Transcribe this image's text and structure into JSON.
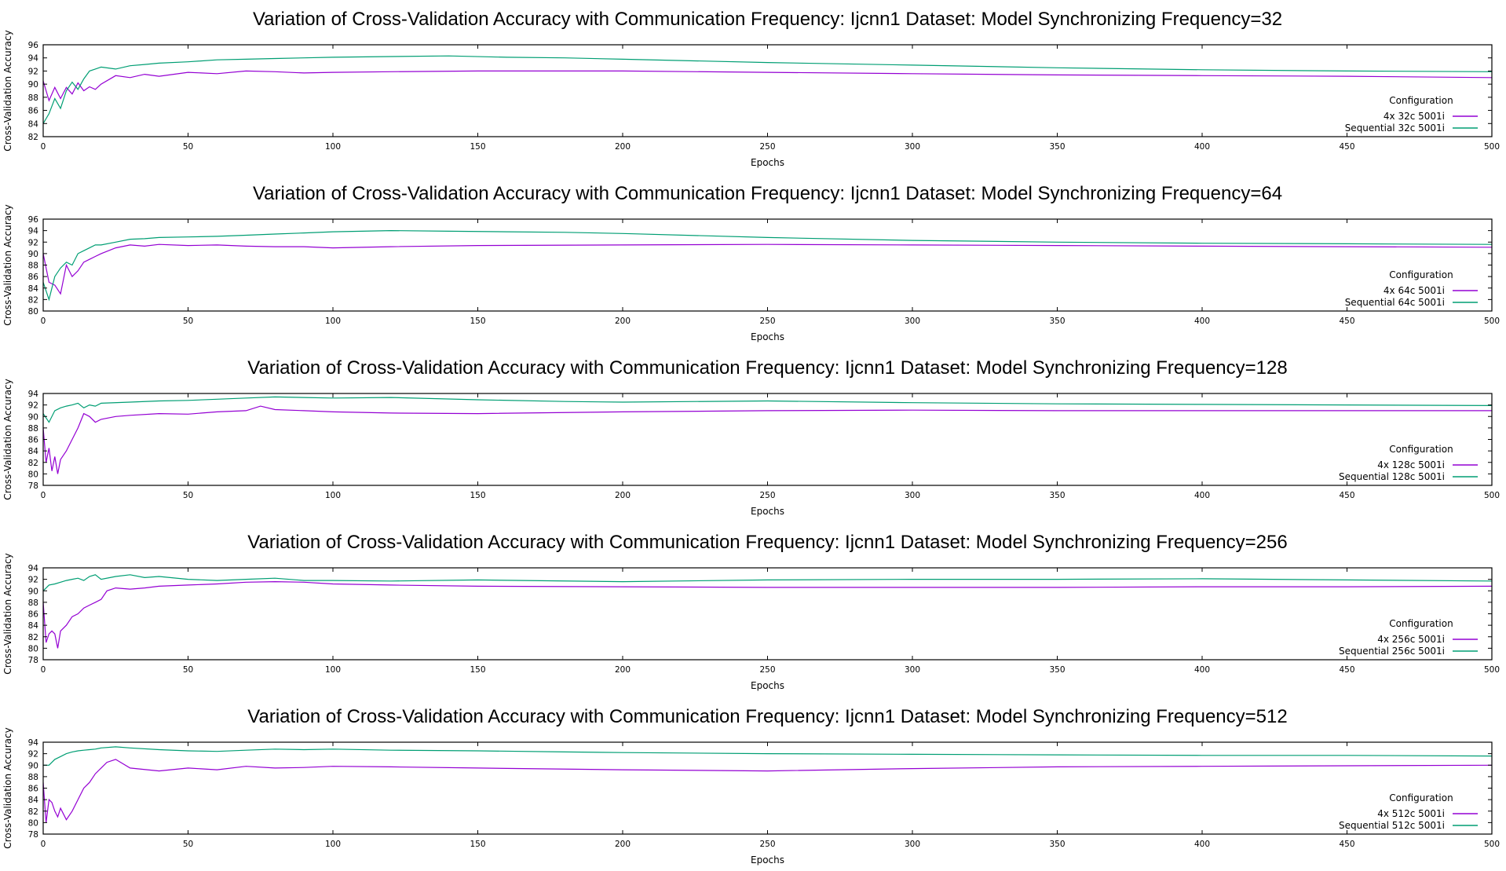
{
  "chart_data": [
    {
      "type": "line",
      "title": "Variation of Cross-Validation Accuracy with Communication Frequency: Ijcnn1 Dataset: Model Synchronizing Frequency=32",
      "xlabel": "Epochs",
      "ylabel": "Cross-Validation Accuracy",
      "xlim": [
        0,
        500
      ],
      "ylim": [
        82,
        96
      ],
      "xticks": [
        0,
        50,
        100,
        150,
        200,
        250,
        300,
        350,
        400,
        450,
        500
      ],
      "yticks": [
        82,
        84,
        86,
        88,
        90,
        92,
        94,
        96
      ],
      "grid": false,
      "legend": {
        "title": "Configuration",
        "position": "bottom-right"
      },
      "series": [
        {
          "name": "4x 32c 5001i",
          "color": "#9400d3",
          "x": [
            0,
            2,
            4,
            6,
            8,
            10,
            12,
            14,
            16,
            18,
            20,
            25,
            30,
            35,
            40,
            50,
            60,
            70,
            80,
            90,
            100,
            120,
            150,
            180,
            200,
            250,
            300,
            350,
            400,
            450,
            500
          ],
          "y": [
            90.5,
            87.5,
            89.5,
            87.8,
            89.5,
            88.5,
            90.2,
            89.0,
            89.6,
            89.2,
            90.0,
            91.3,
            91.0,
            91.5,
            91.2,
            91.8,
            91.6,
            92.0,
            91.9,
            91.7,
            91.8,
            91.9,
            92.0,
            92.0,
            92.0,
            91.8,
            91.6,
            91.4,
            91.3,
            91.2,
            91.0
          ]
        },
        {
          "name": "Sequential 32c 5001i",
          "color": "#009e73",
          "x": [
            0,
            2,
            4,
            6,
            8,
            10,
            12,
            14,
            16,
            18,
            20,
            25,
            30,
            35,
            40,
            50,
            60,
            70,
            80,
            90,
            100,
            120,
            140,
            160,
            180,
            200,
            250,
            300,
            350,
            400,
            450,
            500
          ],
          "y": [
            84.0,
            85.5,
            87.8,
            86.3,
            89.0,
            90.3,
            89.2,
            90.8,
            92.0,
            92.3,
            92.6,
            92.3,
            92.8,
            93.0,
            93.2,
            93.4,
            93.7,
            93.8,
            93.9,
            94.0,
            94.1,
            94.2,
            94.3,
            94.1,
            94.0,
            93.8,
            93.3,
            92.9,
            92.5,
            92.2,
            92.0,
            91.9
          ]
        }
      ]
    },
    {
      "type": "line",
      "title": "Variation of Cross-Validation Accuracy with Communication Frequency: Ijcnn1 Dataset: Model Synchronizing Frequency=64",
      "xlabel": "Epochs",
      "ylabel": "Cross-Validation Accuracy",
      "xlim": [
        0,
        500
      ],
      "ylim": [
        80,
        96
      ],
      "xticks": [
        0,
        50,
        100,
        150,
        200,
        250,
        300,
        350,
        400,
        450,
        500
      ],
      "yticks": [
        80,
        82,
        84,
        86,
        88,
        90,
        92,
        94,
        96
      ],
      "grid": false,
      "legend": {
        "title": "Configuration",
        "position": "bottom-right"
      },
      "series": [
        {
          "name": "4x 64c 5001i",
          "color": "#9400d3",
          "x": [
            0,
            2,
            4,
            6,
            8,
            10,
            12,
            14,
            16,
            18,
            20,
            25,
            30,
            35,
            40,
            50,
            60,
            70,
            80,
            90,
            100,
            120,
            150,
            200,
            250,
            300,
            350,
            400,
            450,
            500
          ],
          "y": [
            90.0,
            85.0,
            84.5,
            83.0,
            88.0,
            86.0,
            87.0,
            88.5,
            89.0,
            89.5,
            90.0,
            91.0,
            91.5,
            91.3,
            91.6,
            91.4,
            91.5,
            91.3,
            91.2,
            91.2,
            91.0,
            91.2,
            91.4,
            91.5,
            91.6,
            91.5,
            91.4,
            91.3,
            91.2,
            91.1
          ]
        },
        {
          "name": "Sequential 64c 5001i",
          "color": "#009e73",
          "x": [
            0,
            2,
            4,
            6,
            8,
            10,
            12,
            14,
            16,
            18,
            20,
            25,
            30,
            35,
            40,
            50,
            60,
            70,
            80,
            90,
            100,
            120,
            140,
            160,
            180,
            200,
            250,
            300,
            350,
            400,
            450,
            500
          ],
          "y": [
            85.0,
            82.0,
            86.0,
            87.5,
            88.5,
            88.0,
            90.0,
            90.5,
            91.0,
            91.5,
            91.5,
            92.0,
            92.5,
            92.6,
            92.8,
            92.9,
            93.0,
            93.2,
            93.4,
            93.6,
            93.8,
            94.0,
            93.9,
            93.8,
            93.7,
            93.5,
            92.8,
            92.3,
            92.0,
            91.8,
            91.7,
            91.6
          ]
        }
      ]
    },
    {
      "type": "line",
      "title": "Variation of Cross-Validation Accuracy with Communication Frequency: Ijcnn1 Dataset: Model Synchronizing Frequency=128",
      "xlabel": "Epochs",
      "ylabel": "Cross-Validation Accuracy",
      "xlim": [
        0,
        500
      ],
      "ylim": [
        78,
        94
      ],
      "xticks": [
        0,
        50,
        100,
        150,
        200,
        250,
        300,
        350,
        400,
        450,
        500
      ],
      "yticks": [
        78,
        80,
        82,
        84,
        86,
        88,
        90,
        92,
        94
      ],
      "grid": false,
      "legend": {
        "title": "Configuration",
        "position": "bottom-right"
      },
      "series": [
        {
          "name": "4x 128c 5001i",
          "color": "#9400d3",
          "x": [
            0,
            1,
            2,
            3,
            4,
            5,
            6,
            8,
            10,
            12,
            14,
            16,
            18,
            20,
            25,
            30,
            40,
            50,
            60,
            70,
            75,
            80,
            90,
            100,
            120,
            150,
            200,
            250,
            300,
            350,
            400,
            450,
            500
          ],
          "y": [
            88.0,
            82.0,
            84.5,
            80.5,
            83.0,
            80.0,
            82.5,
            84.0,
            86.0,
            88.0,
            90.5,
            90.0,
            89.0,
            89.5,
            90.0,
            90.2,
            90.5,
            90.4,
            90.8,
            91.0,
            91.8,
            91.2,
            91.0,
            90.8,
            90.6,
            90.5,
            90.8,
            91.0,
            91.1,
            91.0,
            91.0,
            91.0,
            91.0
          ]
        },
        {
          "name": "Sequential 128c 5001i",
          "color": "#009e73",
          "x": [
            0,
            2,
            4,
            6,
            8,
            10,
            12,
            14,
            16,
            18,
            20,
            30,
            40,
            50,
            60,
            70,
            80,
            90,
            100,
            120,
            150,
            180,
            200,
            250,
            300,
            350,
            400,
            450,
            500
          ],
          "y": [
            90.5,
            89.0,
            91.0,
            91.5,
            91.8,
            92.0,
            92.3,
            91.5,
            92.0,
            91.8,
            92.3,
            92.5,
            92.7,
            92.8,
            93.0,
            93.2,
            93.4,
            93.3,
            93.2,
            93.3,
            92.9,
            92.6,
            92.5,
            92.7,
            92.4,
            92.2,
            92.1,
            92.0,
            91.9
          ]
        }
      ]
    },
    {
      "type": "line",
      "title": "Variation of Cross-Validation Accuracy with Communication Frequency: Ijcnn1 Dataset: Model Synchronizing Frequency=256",
      "xlabel": "Epochs",
      "ylabel": "Cross-Validation Accuracy",
      "xlim": [
        0,
        500
      ],
      "ylim": [
        78,
        94
      ],
      "xticks": [
        0,
        50,
        100,
        150,
        200,
        250,
        300,
        350,
        400,
        450,
        500
      ],
      "yticks": [
        78,
        80,
        82,
        84,
        86,
        88,
        90,
        92,
        94
      ],
      "grid": false,
      "legend": {
        "title": "Configuration",
        "position": "bottom-right"
      },
      "series": [
        {
          "name": "4x 256c 5001i",
          "color": "#9400d3",
          "x": [
            0,
            1,
            2,
            3,
            4,
            5,
            6,
            8,
            10,
            12,
            14,
            16,
            18,
            20,
            22,
            25,
            30,
            35,
            40,
            50,
            60,
            70,
            80,
            90,
            100,
            120,
            150,
            200,
            250,
            300,
            350,
            400,
            450,
            500
          ],
          "y": [
            88.0,
            81.0,
            82.5,
            83.0,
            82.5,
            80.0,
            83.0,
            84.0,
            85.5,
            86.0,
            87.0,
            87.5,
            88.0,
            88.5,
            90.0,
            90.5,
            90.3,
            90.5,
            90.8,
            91.0,
            91.2,
            91.5,
            91.6,
            91.5,
            91.2,
            91.0,
            90.8,
            90.7,
            90.6,
            90.6,
            90.6,
            90.7,
            90.7,
            90.8
          ]
        },
        {
          "name": "Sequential 256c 5001i",
          "color": "#009e73",
          "x": [
            0,
            2,
            4,
            6,
            8,
            10,
            12,
            14,
            16,
            18,
            20,
            25,
            30,
            35,
            40,
            50,
            60,
            70,
            80,
            90,
            100,
            120,
            150,
            200,
            250,
            300,
            350,
            400,
            450,
            500
          ],
          "y": [
            90.0,
            91.0,
            91.2,
            91.5,
            91.8,
            92.0,
            92.2,
            91.8,
            92.5,
            92.8,
            92.0,
            92.5,
            92.8,
            92.3,
            92.5,
            92.0,
            91.8,
            92.0,
            92.2,
            91.8,
            91.8,
            91.7,
            91.9,
            91.6,
            91.9,
            92.0,
            92.0,
            92.1,
            91.9,
            91.7
          ]
        }
      ]
    },
    {
      "type": "line",
      "title": "Variation of Cross-Validation Accuracy with Communication Frequency: Ijcnn1 Dataset: Model Synchronizing Frequency=512",
      "xlabel": "Epochs",
      "ylabel": "Cross-Validation Accuracy",
      "xlim": [
        0,
        500
      ],
      "ylim": [
        78,
        94
      ],
      "xticks": [
        0,
        50,
        100,
        150,
        200,
        250,
        300,
        350,
        400,
        450,
        500
      ],
      "yticks": [
        78,
        80,
        82,
        84,
        86,
        88,
        90,
        92,
        94
      ],
      "grid": false,
      "legend": {
        "title": "Configuration",
        "position": "bottom-right"
      },
      "series": [
        {
          "name": "4x 512c 5001i",
          "color": "#9400d3",
          "x": [
            0,
            1,
            2,
            3,
            4,
            5,
            6,
            8,
            10,
            12,
            14,
            16,
            18,
            20,
            22,
            25,
            30,
            40,
            50,
            60,
            70,
            80,
            90,
            100,
            120,
            150,
            200,
            250,
            300,
            350,
            400,
            450,
            500
          ],
          "y": [
            87.0,
            80.0,
            84.0,
            83.5,
            82.0,
            81.0,
            82.5,
            80.5,
            82.0,
            84.0,
            86.0,
            87.0,
            88.5,
            89.5,
            90.5,
            91.0,
            89.5,
            89.0,
            89.5,
            89.2,
            89.8,
            89.5,
            89.6,
            89.8,
            89.7,
            89.5,
            89.2,
            89.0,
            89.4,
            89.7,
            89.8,
            89.9,
            90.0
          ]
        },
        {
          "name": "Sequential 512c 5001i",
          "color": "#009e73",
          "x": [
            0,
            2,
            4,
            6,
            8,
            10,
            12,
            14,
            16,
            18,
            20,
            25,
            30,
            40,
            50,
            60,
            70,
            80,
            90,
            100,
            120,
            150,
            180,
            200,
            250,
            300,
            350,
            400,
            450,
            500
          ],
          "y": [
            90.0,
            90.0,
            91.0,
            91.5,
            92.0,
            92.3,
            92.5,
            92.6,
            92.7,
            92.8,
            93.0,
            93.2,
            93.0,
            92.7,
            92.5,
            92.4,
            92.6,
            92.8,
            92.7,
            92.8,
            92.6,
            92.5,
            92.3,
            92.2,
            92.0,
            91.9,
            91.8,
            91.7,
            91.7,
            91.6
          ]
        }
      ]
    }
  ]
}
